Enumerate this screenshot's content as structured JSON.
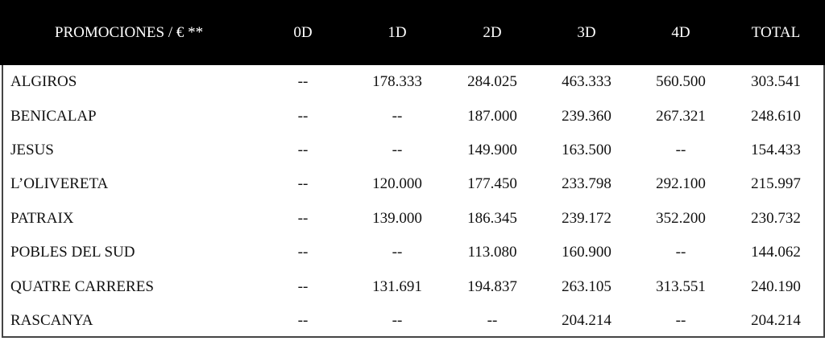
{
  "table": {
    "header": [
      "PROMOCIONES / € **",
      "0D",
      "1D",
      "2D",
      "3D",
      "4D",
      "TOTAL"
    ],
    "rows": [
      [
        "ALGIROS",
        "--",
        "178.333",
        "284.025",
        "463.333",
        "560.500",
        "303.541"
      ],
      [
        "BENICALAP",
        "--",
        "--",
        "187.000",
        "239.360",
        "267.321",
        "248.610"
      ],
      [
        "JESUS",
        "--",
        "--",
        "149.900",
        "163.500",
        "--",
        "154.433"
      ],
      [
        "L’OLIVERETA",
        "--",
        "120.000",
        "177.450",
        "233.798",
        "292.100",
        "215.997"
      ],
      [
        "PATRAIX",
        "--",
        "139.000",
        "186.345",
        "239.172",
        "352.200",
        "230.732"
      ],
      [
        "POBLES DEL SUD",
        "--",
        "--",
        "113.080",
        "160.900",
        "--",
        "144.062"
      ],
      [
        "QUATRE CARRERES",
        "--",
        "131.691",
        "194.837",
        "263.105",
        "313.551",
        "240.190"
      ],
      [
        "RASCANYA",
        "--",
        "--",
        "--",
        "204.214",
        "--",
        "204.214"
      ]
    ]
  }
}
